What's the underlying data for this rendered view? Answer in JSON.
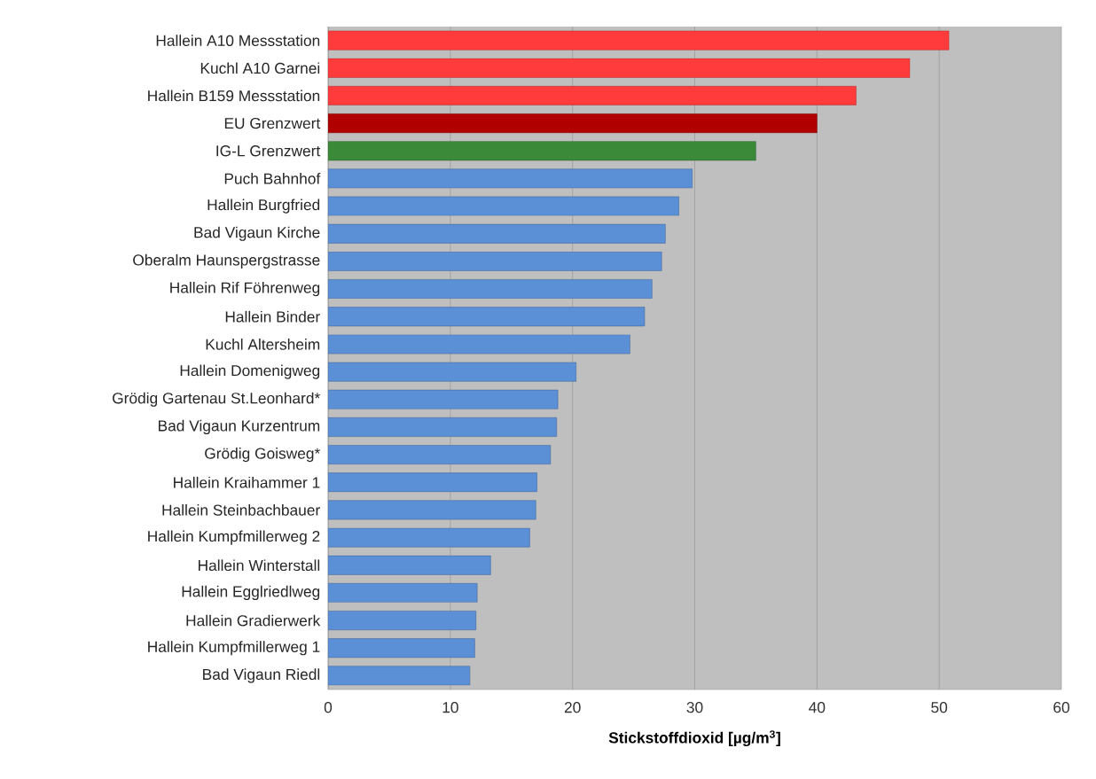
{
  "chart_data": {
    "type": "bar",
    "orientation": "horizontal",
    "xlabel": "Stickstoffdioxid [µg/m$^{3}$]",
    "categories": [
      "Hallein A10 Messstation",
      "Kuchl A10 Garnei",
      "Hallein B159 Messstation",
      "EU Grenzwert",
      "IG-L Grenzwert",
      "Puch Bahnhof",
      "Hallein Burgfried",
      "Bad Vigaun Kirche",
      "Oberalm Haunspergstrasse",
      "Hallein Rif Föhrenweg",
      "Hallein Binder",
      "Kuchl Altersheim",
      "Hallein Domenigweg",
      "Grödig Gartenau St.Leonhard*",
      "Bad Vigaun Kurzentrum",
      "Grödig Goisweg*",
      "Hallein Kraihammer 1",
      "Hallein Steinbachbauer",
      "Hallein Kumpfmillerweg 2",
      "Hallein Winterstall",
      "Hallein Egglriedlweg",
      "Hallein Gradierwerk",
      "Hallein Kumpfmillerweg 1",
      "Bad Vigaun Riedl"
    ],
    "values": [
      50.8,
      47.6,
      43.2,
      40,
      35,
      29.8,
      28.7,
      27.6,
      27.3,
      26.5,
      25.9,
      24.7,
      20.3,
      18.8,
      18.7,
      18.2,
      17.1,
      17.0,
      16.5,
      13.3,
      12.2,
      12.1,
      12.0,
      11.6
    ],
    "colors": [
      "#ff3b3b",
      "#ff3b3b",
      "#ff3b3b",
      "#b00000",
      "#3a8a3a",
      "#5b8fd6",
      "#5b8fd6",
      "#5b8fd6",
      "#5b8fd6",
      "#5b8fd6",
      "#5b8fd6",
      "#5b8fd6",
      "#5b8fd6",
      "#5b8fd6",
      "#5b8fd6",
      "#5b8fd6",
      "#5b8fd6",
      "#5b8fd6",
      "#5b8fd6",
      "#5b8fd6",
      "#5b8fd6",
      "#5b8fd6",
      "#5b8fd6",
      "#5b8fd6"
    ],
    "xlim": [
      0,
      60
    ],
    "xticks": [
      0,
      10,
      20,
      30,
      40,
      50,
      60
    ],
    "grid": "x"
  }
}
